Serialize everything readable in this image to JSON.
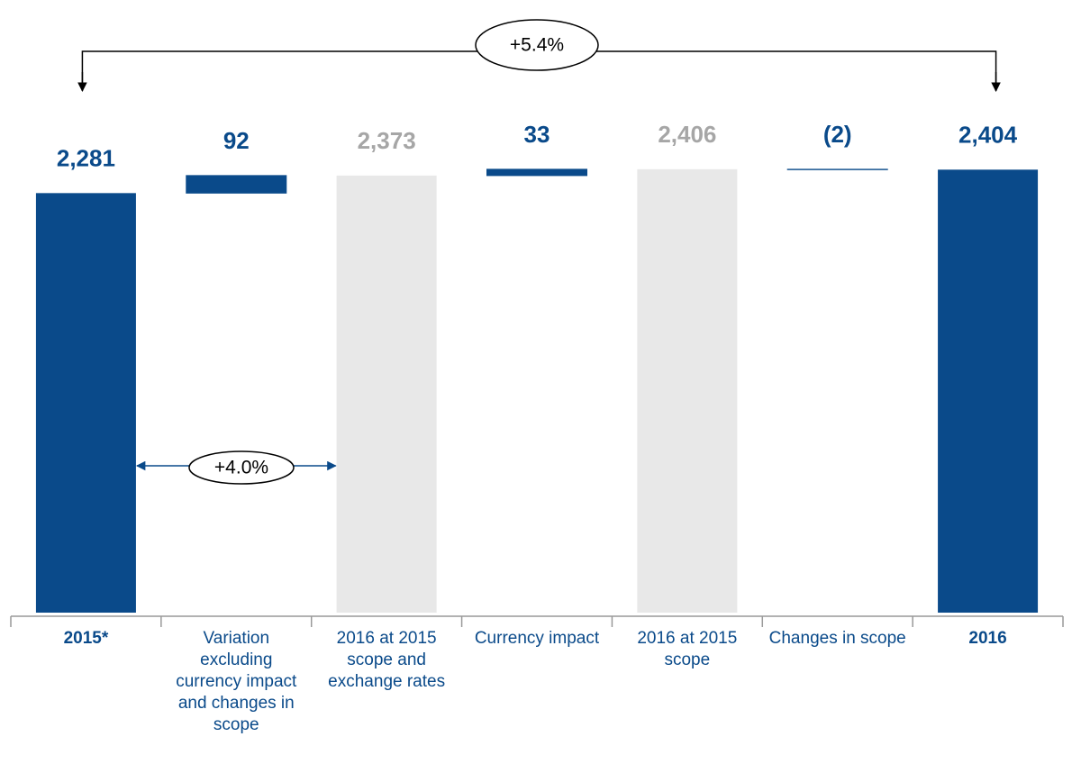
{
  "chart_data": {
    "type": "waterfall",
    "categories": [
      "2015*",
      "Variation excluding currency impact and changes in scope",
      "2016 at 2015 scope and exchange rates",
      "Currency impact",
      "2016 at 2015 scope",
      "Changes in scope",
      "2016"
    ],
    "values": [
      2281,
      92,
      2373,
      33,
      2406,
      -2,
      2404
    ],
    "value_labels": [
      "2,281",
      "92",
      "2,373",
      "33",
      "2,406",
      "(2)",
      "2,404"
    ],
    "measure": [
      "absolute",
      "relative",
      "subtotal",
      "relative",
      "subtotal",
      "relative",
      "absolute"
    ],
    "colors": [
      "#0a4a8a",
      "#0a4a8a",
      "#e8e8e8",
      "#0a4a8a",
      "#e8e8e8",
      "#0a4a8a",
      "#0a4a8a"
    ],
    "label_colors": [
      "#0a4a8a",
      "#0a4a8a",
      "#a6a6a6",
      "#0a4a8a",
      "#a6a6a6",
      "#0a4a8a",
      "#0a4a8a"
    ],
    "ylim": [
      80,
      2500
    ],
    "annotations": [
      {
        "text": "+5.4%",
        "from": 0,
        "to": 6
      },
      {
        "text": "+4.0%",
        "from": 0,
        "to": 2
      }
    ]
  }
}
